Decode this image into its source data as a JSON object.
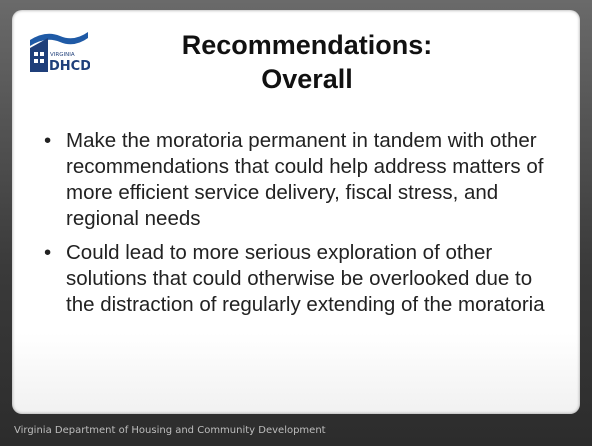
{
  "logo": {
    "state": "VIRGINIA",
    "name": "DHCD"
  },
  "title": "Recommendations: Overall",
  "bullets": [
    "Make the moratoria permanent in tandem with other recommendations that could help address matters of more efficient service delivery, fiscal stress, and regional needs",
    "Could lead to more serious exploration of other solutions that could otherwise be overlooked due to the distraction of regularly extending of the moratoria"
  ],
  "footer": "Virginia Department of Housing and Community Development"
}
